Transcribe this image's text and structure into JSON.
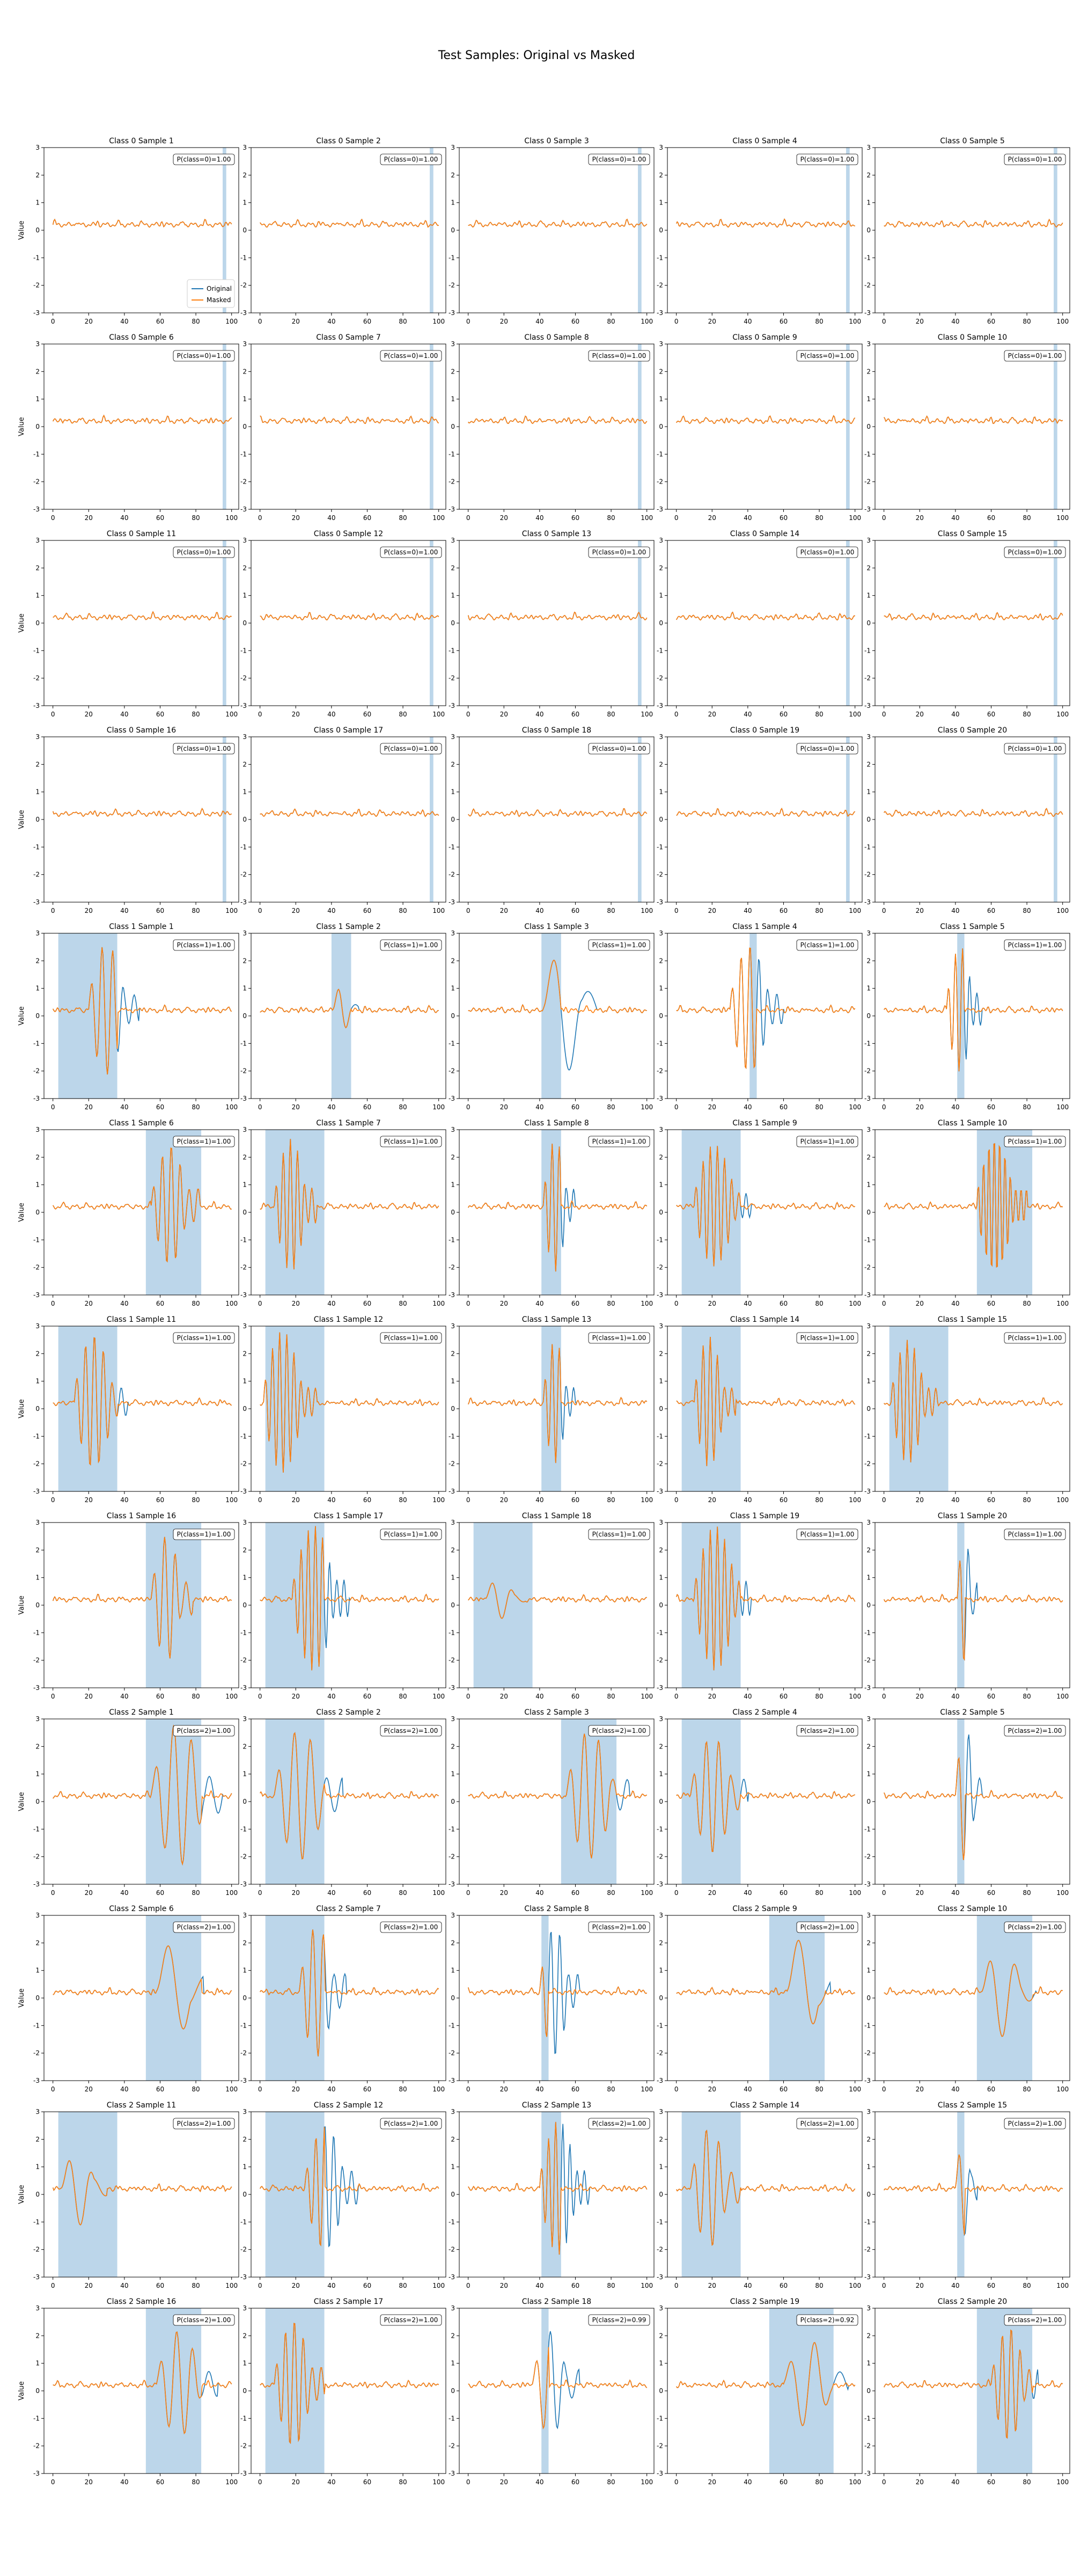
{
  "figure": {
    "title": "Test Samples: Original vs Masked",
    "ylabel": "Value",
    "legend": {
      "items": [
        "Original",
        "Masked"
      ],
      "placement": "lower-right of first panel"
    },
    "colors": {
      "original": "#1f77b4",
      "masked": "#ff7f0e",
      "mask_span": "#a6c8e3"
    }
  },
  "chart_data": {
    "type": "line",
    "layout_grid": {
      "rows": 12,
      "cols": 5
    },
    "xlim": [
      -5,
      104
    ],
    "ylim": [
      -3,
      3
    ],
    "xticks": [
      0,
      20,
      40,
      60,
      80,
      100
    ],
    "yticks": [
      -3,
      -2,
      -1,
      0,
      1,
      2,
      3
    ],
    "series_names": [
      "Original",
      "Masked"
    ],
    "panels": [
      {
        "title": "Class 0 Sample 1",
        "cls": 0,
        "prob": "P(class=0)=1.00",
        "mask": [
          95,
          97
        ],
        "wave": null,
        "legend": true
      },
      {
        "title": "Class 0 Sample 2",
        "cls": 0,
        "prob": "P(class=0)=1.00",
        "mask": [
          95,
          97
        ],
        "wave": null
      },
      {
        "title": "Class 0 Sample 3",
        "cls": 0,
        "prob": "P(class=0)=1.00",
        "mask": [
          95,
          97
        ],
        "wave": null
      },
      {
        "title": "Class 0 Sample 4",
        "cls": 0,
        "prob": "P(class=0)=1.00",
        "mask": [
          95,
          97
        ],
        "wave": null
      },
      {
        "title": "Class 0 Sample 5",
        "cls": 0,
        "prob": "P(class=0)=1.00",
        "mask": [
          95,
          97
        ],
        "wave": null
      },
      {
        "title": "Class 0 Sample 6",
        "cls": 0,
        "prob": "P(class=0)=1.00",
        "mask": [
          95,
          97
        ],
        "wave": null
      },
      {
        "title": "Class 0 Sample 7",
        "cls": 0,
        "prob": "P(class=0)=1.00",
        "mask": [
          95,
          97
        ],
        "wave": null
      },
      {
        "title": "Class 0 Sample 8",
        "cls": 0,
        "prob": "P(class=0)=1.00",
        "mask": [
          95,
          97
        ],
        "wave": null
      },
      {
        "title": "Class 0 Sample 9",
        "cls": 0,
        "prob": "P(class=0)=1.00",
        "mask": [
          95,
          97
        ],
        "wave": null
      },
      {
        "title": "Class 0 Sample 10",
        "cls": 0,
        "prob": "P(class=0)=1.00",
        "mask": [
          95,
          97
        ],
        "wave": null
      },
      {
        "title": "Class 0 Sample 11",
        "cls": 0,
        "prob": "P(class=0)=1.00",
        "mask": [
          95,
          97
        ],
        "wave": null
      },
      {
        "title": "Class 0 Sample 12",
        "cls": 0,
        "prob": "P(class=0)=1.00",
        "mask": [
          95,
          97
        ],
        "wave": null
      },
      {
        "title": "Class 0 Sample 13",
        "cls": 0,
        "prob": "P(class=0)=1.00",
        "mask": [
          95,
          97
        ],
        "wave": null
      },
      {
        "title": "Class 0 Sample 14",
        "cls": 0,
        "prob": "P(class=0)=1.00",
        "mask": [
          95,
          97
        ],
        "wave": null
      },
      {
        "title": "Class 0 Sample 15",
        "cls": 0,
        "prob": "P(class=0)=1.00",
        "mask": [
          95,
          97
        ],
        "wave": null
      },
      {
        "title": "Class 0 Sample 16",
        "cls": 0,
        "prob": "P(class=0)=1.00",
        "mask": [
          95,
          97
        ],
        "wave": null
      },
      {
        "title": "Class 0 Sample 17",
        "cls": 0,
        "prob": "P(class=0)=1.00",
        "mask": [
          95,
          97
        ],
        "wave": null
      },
      {
        "title": "Class 0 Sample 18",
        "cls": 0,
        "prob": "P(class=0)=1.00",
        "mask": [
          95,
          97
        ],
        "wave": null
      },
      {
        "title": "Class 0 Sample 19",
        "cls": 0,
        "prob": "P(class=0)=1.00",
        "mask": [
          95,
          97
        ],
        "wave": null
      },
      {
        "title": "Class 0 Sample 20",
        "cls": 0,
        "prob": "P(class=0)=1.00",
        "mask": [
          95,
          97
        ],
        "wave": null
      },
      {
        "title": "Class 1 Sample 1",
        "cls": 1,
        "prob": "P(class=1)=1.00",
        "mask": [
          3,
          36
        ],
        "wave": {
          "start": 20,
          "end": 48,
          "period": 6,
          "amp0": 2.6,
          "amp1": 2.0
        }
      },
      {
        "title": "Class 1 Sample 2",
        "cls": 1,
        "prob": "P(class=1)=1.00",
        "mask": [
          40,
          51
        ],
        "wave": {
          "start": 41,
          "end": 55,
          "period": 10,
          "amp0": 1.0,
          "amp1": 0.6
        }
      },
      {
        "title": "Class 1 Sample 3",
        "cls": 1,
        "prob": "P(class=1)=1.00",
        "mask": [
          41,
          52
        ],
        "wave": {
          "start": 42,
          "end": 72,
          "period": 20,
          "amp0": 2.3,
          "amp1": 2.6
        }
      },
      {
        "title": "Class 1 Sample 4",
        "cls": 1,
        "prob": "P(class=1)=1.00",
        "mask": [
          41,
          45
        ],
        "wave": {
          "start": 30,
          "end": 60,
          "period": 5,
          "amp0": 2.4,
          "amp1": 2.2
        }
      },
      {
        "title": "Class 1 Sample 5",
        "cls": 1,
        "prob": "P(class=1)=1.00",
        "mask": [
          41,
          45
        ],
        "wave": {
          "start": 35,
          "end": 55,
          "period": 4,
          "amp0": 2.2,
          "amp1": 2.4
        }
      },
      {
        "title": "Class 1 Sample 6",
        "cls": 1,
        "prob": "P(class=1)=1.00",
        "mask": [
          52,
          83
        ],
        "wave": {
          "start": 55,
          "end": 82,
          "period": 5,
          "amp0": 2.0,
          "amp1": 2.5
        }
      },
      {
        "title": "Class 1 Sample 7",
        "cls": 1,
        "prob": "P(class=1)=1.00",
        "mask": [
          3,
          36
        ],
        "wave": {
          "start": 8,
          "end": 32,
          "period": 4,
          "amp0": 2.3,
          "amp1": 2.6
        }
      },
      {
        "title": "Class 1 Sample 8",
        "cls": 1,
        "prob": "P(class=1)=1.00",
        "mask": [
          41,
          52
        ],
        "wave": {
          "start": 42,
          "end": 60,
          "period": 4,
          "amp0": 2.4,
          "amp1": 2.4
        }
      },
      {
        "title": "Class 1 Sample 9",
        "cls": 1,
        "prob": "P(class=1)=1.00",
        "mask": [
          3,
          36
        ],
        "wave": {
          "start": 10,
          "end": 42,
          "period": 4,
          "amp0": 2.5,
          "amp1": 1.7
        }
      },
      {
        "title": "Class 1 Sample 10",
        "cls": 1,
        "prob": "P(class=1)=1.00",
        "mask": [
          52,
          83
        ],
        "wave": {
          "start": 52,
          "end": 80,
          "period": 3,
          "amp0": 2.7,
          "amp1": 2.4
        }
      },
      {
        "title": "Class 1 Sample 11",
        "cls": 1,
        "prob": "P(class=1)=1.00",
        "mask": [
          3,
          36
        ],
        "wave": {
          "start": 12,
          "end": 42,
          "period": 5,
          "amp0": 2.7,
          "amp1": 2.0
        }
      },
      {
        "title": "Class 1 Sample 12",
        "cls": 1,
        "prob": "P(class=1)=1.00",
        "mask": [
          3,
          36
        ],
        "wave": {
          "start": 2,
          "end": 32,
          "period": 4,
          "amp0": 2.9,
          "amp1": 2.0
        }
      },
      {
        "title": "Class 1 Sample 13",
        "cls": 1,
        "prob": "P(class=1)=1.00",
        "mask": [
          41,
          52
        ],
        "wave": {
          "start": 42,
          "end": 60,
          "period": 4,
          "amp0": 2.3,
          "amp1": 2.1
        }
      },
      {
        "title": "Class 1 Sample 14",
        "cls": 1,
        "prob": "P(class=1)=1.00",
        "mask": [
          3,
          36
        ],
        "wave": {
          "start": 10,
          "end": 33,
          "period": 4,
          "amp0": 2.6,
          "amp1": 2.0
        }
      },
      {
        "title": "Class 1 Sample 15",
        "cls": 1,
        "prob": "P(class=1)=1.00",
        "mask": [
          3,
          36
        ],
        "wave": {
          "start": 4,
          "end": 30,
          "period": 4,
          "amp0": 2.4,
          "amp1": 2.0
        }
      },
      {
        "title": "Class 1 Sample 16",
        "cls": 1,
        "prob": "P(class=1)=1.00",
        "mask": [
          52,
          83
        ],
        "wave": {
          "start": 55,
          "end": 78,
          "period": 6,
          "amp0": 2.2,
          "amp1": 2.4
        }
      },
      {
        "title": "Class 1 Sample 17",
        "cls": 1,
        "prob": "P(class=1)=1.00",
        "mask": [
          3,
          36
        ],
        "wave": {
          "start": 18,
          "end": 50,
          "period": 4,
          "amp0": 2.6,
          "amp1": 2.7
        }
      },
      {
        "title": "Class 1 Sample 18",
        "cls": 1,
        "prob": "P(class=1)=1.00",
        "mask": [
          3,
          36
        ],
        "wave": {
          "start": 10,
          "end": 32,
          "period": 12,
          "amp0": 0.9,
          "amp1": 0.5
        }
      },
      {
        "title": "Class 1 Sample 19",
        "cls": 1,
        "prob": "P(class=1)=1.00",
        "mask": [
          3,
          36
        ],
        "wave": {
          "start": 10,
          "end": 42,
          "period": 4,
          "amp0": 2.7,
          "amp1": 2.5
        }
      },
      {
        "title": "Class 1 Sample 20",
        "cls": 1,
        "prob": "P(class=1)=1.00",
        "mask": [
          41,
          45
        ],
        "wave": {
          "start": 41,
          "end": 52,
          "period": 5,
          "amp0": 2.3,
          "amp1": 2.4
        }
      },
      {
        "title": "Class 2 Sample 1",
        "cls": 2,
        "prob": "P(class=2)=1.00",
        "mask": [
          52,
          83
        ],
        "wave": {
          "start": 55,
          "end": 95,
          "period": 10,
          "amp0": 2.5,
          "amp1": 2.7
        }
      },
      {
        "title": "Class 2 Sample 2",
        "cls": 2,
        "prob": "P(class=2)=1.00",
        "mask": [
          3,
          36
        ],
        "wave": {
          "start": 8,
          "end": 46,
          "period": 9,
          "amp0": 2.3,
          "amp1": 2.5
        }
      },
      {
        "title": "Class 2 Sample 3",
        "cls": 2,
        "prob": "P(class=2)=1.00",
        "mask": [
          52,
          83
        ],
        "wave": {
          "start": 55,
          "end": 90,
          "period": 8,
          "amp0": 2.4,
          "amp1": 2.2
        }
      },
      {
        "title": "Class 2 Sample 4",
        "cls": 2,
        "prob": "P(class=2)=1.00",
        "mask": [
          3,
          36
        ],
        "wave": {
          "start": 8,
          "end": 40,
          "period": 7,
          "amp0": 2.0,
          "amp1": 2.3
        }
      },
      {
        "title": "Class 2 Sample 5",
        "cls": 2,
        "prob": "P(class=2)=1.00",
        "mask": [
          41,
          45
        ],
        "wave": {
          "start": 40,
          "end": 55,
          "period": 6,
          "amp0": 2.5,
          "amp1": 2.4
        }
      },
      {
        "title": "Class 2 Sample 6",
        "cls": 2,
        "prob": "P(class=2)=1.00",
        "mask": [
          52,
          83
        ],
        "wave": {
          "start": 58,
          "end": 84,
          "period": 22,
          "amp0": 1.8,
          "amp1": 2.3
        }
      },
      {
        "title": "Class 2 Sample 7",
        "cls": 2,
        "prob": "P(class=2)=1.00",
        "mask": [
          3,
          36
        ],
        "wave": {
          "start": 22,
          "end": 48,
          "period": 6,
          "amp0": 2.3,
          "amp1": 2.5
        }
      },
      {
        "title": "Class 2 Sample 8",
        "cls": 2,
        "prob": "P(class=2)=1.00",
        "mask": [
          41,
          45
        ],
        "wave": {
          "start": 40,
          "end": 62,
          "period": 5,
          "amp0": 2.3,
          "amp1": 2.5
        }
      },
      {
        "title": "Class 2 Sample 9",
        "cls": 2,
        "prob": "P(class=2)=1.00",
        "mask": [
          52,
          83
        ],
        "wave": {
          "start": 62,
          "end": 86,
          "period": 22,
          "amp0": 2.0,
          "amp1": 2.3
        }
      },
      {
        "title": "Class 2 Sample 10",
        "cls": 2,
        "prob": "P(class=2)=1.00",
        "mask": [
          52,
          83
        ],
        "wave": {
          "start": 55,
          "end": 85,
          "period": 15,
          "amp0": 1.8,
          "amp1": 1.4
        }
      },
      {
        "title": "Class 2 Sample 11",
        "cls": 2,
        "prob": "P(class=2)=1.00",
        "mask": [
          3,
          36
        ],
        "wave": {
          "start": 5,
          "end": 30,
          "period": 14,
          "amp0": 1.5,
          "amp1": 1.2
        }
      },
      {
        "title": "Class 2 Sample 12",
        "cls": 2,
        "prob": "P(class=2)=1.00",
        "mask": [
          3,
          36
        ],
        "wave": {
          "start": 25,
          "end": 55,
          "period": 5,
          "amp0": 2.2,
          "amp1": 2.5
        }
      },
      {
        "title": "Class 2 Sample 13",
        "cls": 2,
        "prob": "P(class=2)=1.00",
        "mask": [
          41,
          52
        ],
        "wave": {
          "start": 40,
          "end": 68,
          "period": 4,
          "amp0": 2.4,
          "amp1": 2.5
        }
      },
      {
        "title": "Class 2 Sample 14",
        "cls": 2,
        "prob": "P(class=2)=1.00",
        "mask": [
          3,
          36
        ],
        "wave": {
          "start": 8,
          "end": 36,
          "period": 7,
          "amp0": 2.1,
          "amp1": 2.3
        }
      },
      {
        "title": "Class 2 Sample 15",
        "cls": 2,
        "prob": "P(class=2)=1.00",
        "mask": [
          41,
          45
        ],
        "wave": {
          "start": 40,
          "end": 52,
          "period": 7,
          "amp0": 1.7,
          "amp1": 1.9
        }
      },
      {
        "title": "Class 2 Sample 16",
        "cls": 2,
        "prob": "P(class=2)=1.00",
        "mask": [
          52,
          83
        ],
        "wave": {
          "start": 58,
          "end": 92,
          "period": 9,
          "amp0": 2.0,
          "amp1": 1.8
        }
      },
      {
        "title": "Class 2 Sample 17",
        "cls": 2,
        "prob": "P(class=2)=1.00",
        "mask": [
          3,
          36
        ],
        "wave": {
          "start": 8,
          "end": 36,
          "period": 5,
          "amp0": 2.2,
          "amp1": 2.5
        }
      },
      {
        "title": "Class 2 Sample 18",
        "cls": 2,
        "prob": "P(class=2)=0.99",
        "mask": [
          41,
          45
        ],
        "wave": {
          "start": 36,
          "end": 62,
          "period": 8,
          "amp0": 1.8,
          "amp1": 2.1
        }
      },
      {
        "title": "Class 2 Sample 19",
        "cls": 2,
        "prob": "P(class=2)=0.92",
        "mask": [
          52,
          88
        ],
        "wave": {
          "start": 60,
          "end": 96,
          "period": 14,
          "amp0": 1.5,
          "amp1": 1.8
        }
      },
      {
        "title": "Class 2 Sample 20",
        "cls": 2,
        "prob": "P(class=2)=1.00",
        "mask": [
          52,
          83
        ],
        "wave": {
          "start": 60,
          "end": 86,
          "period": 5,
          "amp0": 2.0,
          "amp1": 2.2
        }
      }
    ]
  }
}
